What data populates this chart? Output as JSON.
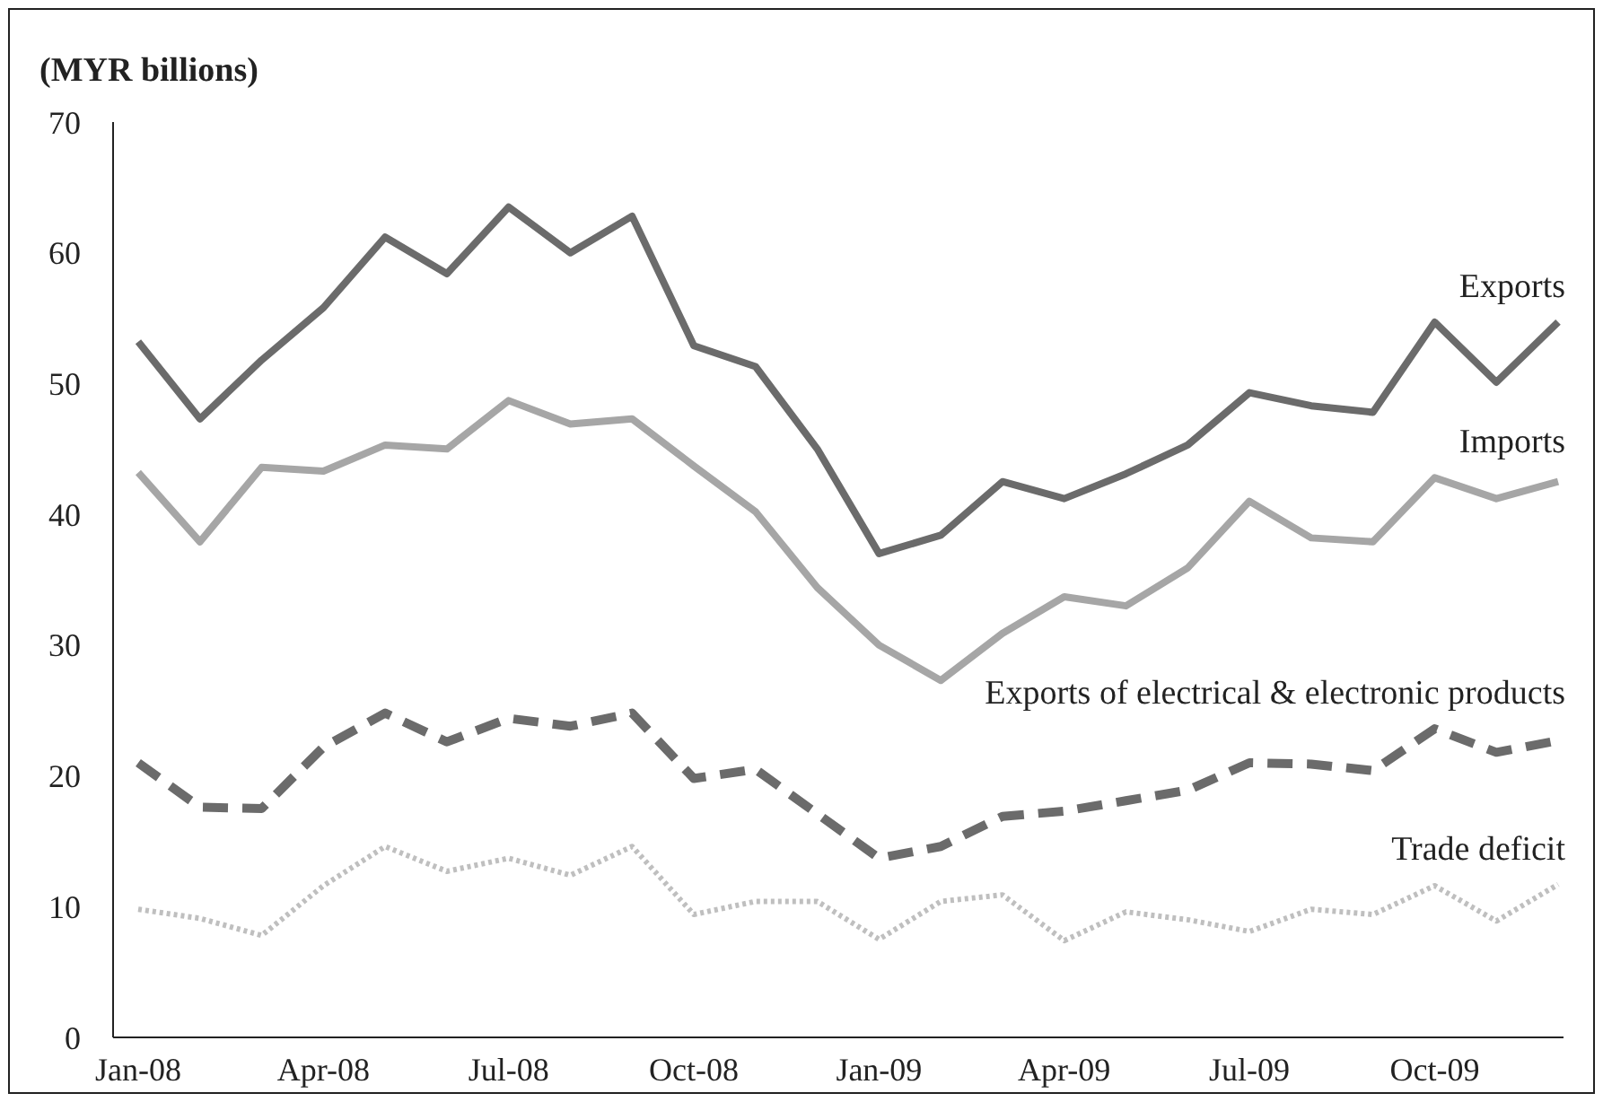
{
  "chart_data": {
    "type": "line",
    "ylabel": "(MYR billions)",
    "categories": [
      "Jan-08",
      null,
      null,
      "Apr-08",
      null,
      null,
      "Jul-08",
      null,
      null,
      "Oct-08",
      null,
      null,
      "Jan-09",
      null,
      null,
      "Apr-09",
      null,
      null,
      "Jul-09",
      null,
      null,
      "Oct-09",
      null,
      null
    ],
    "series": [
      {
        "name": "Exports",
        "color": "#6b6b6b",
        "line_style": "solid",
        "values": [
          53.2,
          47.3,
          51.8,
          55.8,
          61.2,
          58.4,
          63.5,
          60,
          62.8,
          52.9,
          51.3,
          45,
          37,
          38.4,
          42.5,
          41.2,
          43.1,
          45.3,
          49.3,
          48.3,
          47.8,
          54.7,
          50.1,
          54.7
        ]
      },
      {
        "name": "Imports",
        "color": "#a6a6a6",
        "line_style": "solid",
        "values": [
          43.2,
          37.9,
          43.6,
          43.3,
          45.3,
          45,
          48.7,
          46.9,
          47.3,
          43.7,
          40.2,
          34.4,
          30,
          27.3,
          30.9,
          33.7,
          33,
          35.9,
          41,
          38.2,
          37.9,
          42.8,
          41.2,
          42.5
        ]
      },
      {
        "name": "Exports of electrical & electronic products",
        "color": "#6b6b6b",
        "line_style": "dashed",
        "values": [
          21,
          17.6,
          17.5,
          22.2,
          24.8,
          22.6,
          24.4,
          23.8,
          24.8,
          19.8,
          20.5,
          17.1,
          13.7,
          14.6,
          16.9,
          17.3,
          18.1,
          18.9,
          21,
          20.9,
          20.4,
          23.6,
          21.8,
          22.7
        ]
      },
      {
        "name": "Trade deficit",
        "color": "#bfbfbf",
        "line_style": "dotted",
        "values": [
          9.8,
          9.1,
          7.8,
          11.6,
          14.6,
          12.7,
          13.7,
          12.4,
          14.6,
          9.4,
          10.4,
          10.4,
          7.5,
          10.4,
          10.9,
          7.4,
          9.6,
          9,
          8.1,
          9.8,
          9.4,
          11.6,
          8.9,
          11.7
        ]
      }
    ],
    "ylim": [
      0,
      70
    ],
    "yticks": [
      0,
      10,
      20,
      30,
      40,
      50,
      60,
      70
    ],
    "grid": false,
    "marker": "none"
  }
}
